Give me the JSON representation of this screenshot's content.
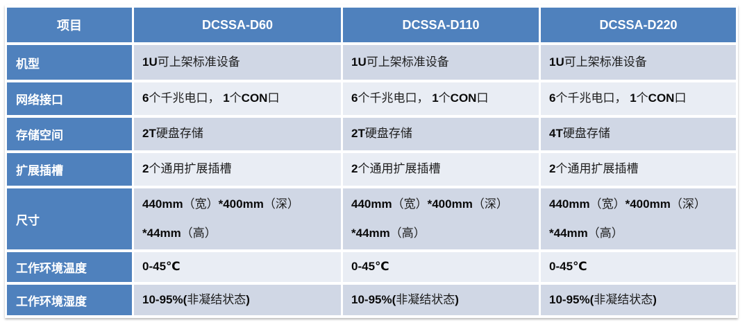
{
  "table": {
    "columns": [
      "项目",
      "DCSSA-D60",
      "DCSSA-D110",
      "DCSSA-D220"
    ],
    "rows": [
      {
        "label": "机型",
        "values": [
          "1U可上架标准设备",
          "1U可上架标准设备",
          "1U可上架标准设备"
        ]
      },
      {
        "label": "网络接口",
        "values": [
          "6个千兆电口， 1个CON口",
          "6个千兆电口， 1个CON口",
          "6个千兆电口， 1个CON口"
        ]
      },
      {
        "label": "存储空间",
        "values": [
          "2T硬盘存储",
          "2T硬盘存储",
          "4T硬盘存储"
        ]
      },
      {
        "label": "扩展插槽",
        "values": [
          "2个通用扩展插槽",
          "2个通用扩展插槽",
          "2个通用扩展插槽"
        ]
      },
      {
        "label": "尺寸",
        "values": [
          "440mm（宽）*400mm（深）\n*44mm（高）",
          "440mm（宽）*400mm（深）\n*44mm（高）",
          "440mm（宽）*400mm（深）\n*44mm（高）"
        ]
      },
      {
        "label": "工作环境温度",
        "values": [
          "0-45℃",
          "0-45℃",
          "0-45℃"
        ]
      },
      {
        "label": "工作环境湿度",
        "values": [
          "10-95%(非凝结状态)",
          "10-95%(非凝结状态)",
          "10-95%(非凝结状态)"
        ]
      }
    ]
  },
  "colors": {
    "header_blue": "#4f81bd",
    "band_dark": "#d0d7e5",
    "band_light": "#e9edf4",
    "header_text": "#ffffff",
    "body_text": "#1d1d1d"
  }
}
